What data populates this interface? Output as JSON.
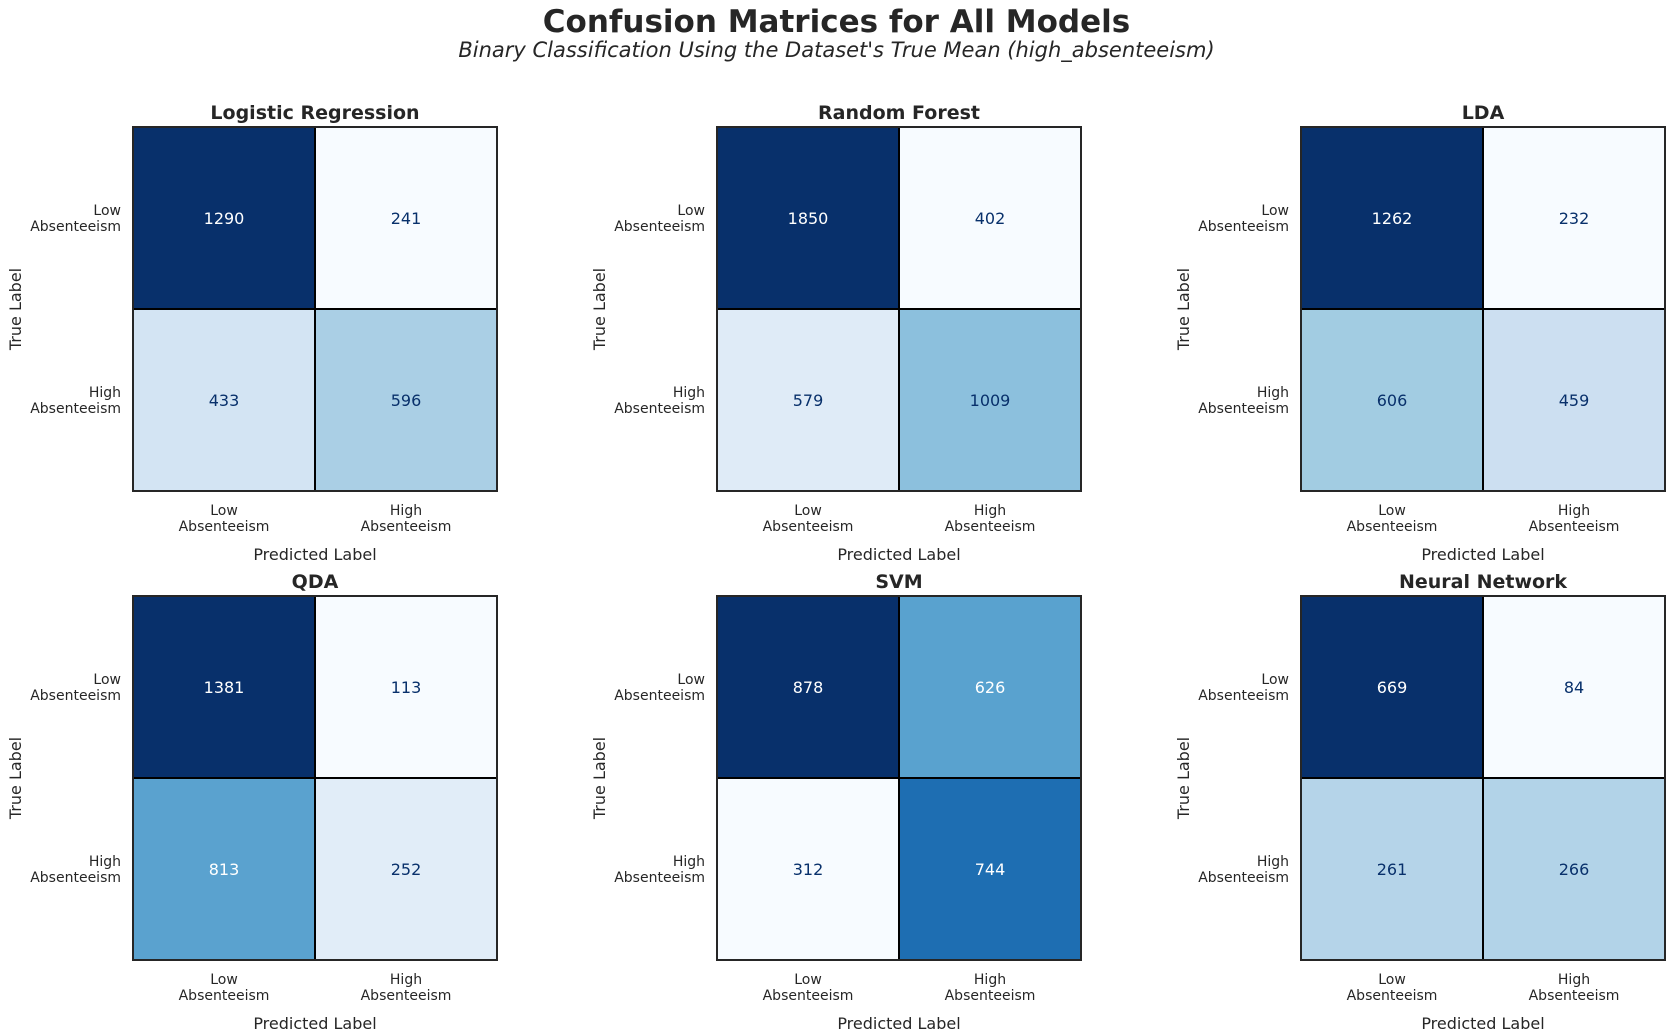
{
  "title": "Confusion Matrices for All Models",
  "subtitle": "Binary Classification Using the Dataset's True Mean (high_absenteeism)",
  "colors": {
    "colormap": "Blues",
    "light": "#f7fbff",
    "dark": "#08306b",
    "cell_border": "#000000",
    "text_on_dark": "#ffffff",
    "text_on_light": "#08306b"
  },
  "chart_data": [
    {
      "type": "heatmap",
      "title": "Logistic Regression",
      "xlabel": "Predicted Label",
      "ylabel": "True Label",
      "x_categories": [
        [
          "Low",
          "Absenteeism"
        ],
        [
          "High",
          "Absenteeism"
        ]
      ],
      "y_categories": [
        [
          "Low",
          "Absenteeism"
        ],
        [
          "High",
          "Absenteeism"
        ]
      ],
      "values": [
        [
          1290,
          241
        ],
        [
          433,
          596
        ]
      ]
    },
    {
      "type": "heatmap",
      "title": "Random Forest",
      "xlabel": "Predicted Label",
      "ylabel": "True Label",
      "x_categories": [
        [
          "Low",
          "Absenteeism"
        ],
        [
          "High",
          "Absenteeism"
        ]
      ],
      "y_categories": [
        [
          "Low",
          "Absenteeism"
        ],
        [
          "High",
          "Absenteeism"
        ]
      ],
      "values": [
        [
          1850,
          402
        ],
        [
          579,
          1009
        ]
      ]
    },
    {
      "type": "heatmap",
      "title": "LDA",
      "xlabel": "Predicted Label",
      "ylabel": "True Label",
      "x_categories": [
        [
          "Low",
          "Absenteeism"
        ],
        [
          "High",
          "Absenteeism"
        ]
      ],
      "y_categories": [
        [
          "Low",
          "Absenteeism"
        ],
        [
          "High",
          "Absenteeism"
        ]
      ],
      "values": [
        [
          1262,
          232
        ],
        [
          606,
          459
        ]
      ]
    },
    {
      "type": "heatmap",
      "title": "QDA",
      "xlabel": "Predicted Label",
      "ylabel": "True Label",
      "x_categories": [
        [
          "Low",
          "Absenteeism"
        ],
        [
          "High",
          "Absenteeism"
        ]
      ],
      "y_categories": [
        [
          "Low",
          "Absenteeism"
        ],
        [
          "High",
          "Absenteeism"
        ]
      ],
      "values": [
        [
          1381,
          113
        ],
        [
          813,
          252
        ]
      ]
    },
    {
      "type": "heatmap",
      "title": "SVM",
      "xlabel": "Predicted Label",
      "ylabel": "True Label",
      "x_categories": [
        [
          "Low",
          "Absenteeism"
        ],
        [
          "High",
          "Absenteeism"
        ]
      ],
      "y_categories": [
        [
          "Low",
          "Absenteeism"
        ],
        [
          "High",
          "Absenteeism"
        ]
      ],
      "values": [
        [
          878,
          626
        ],
        [
          312,
          744
        ]
      ]
    },
    {
      "type": "heatmap",
      "title": "Neural Network",
      "xlabel": "Predicted Label",
      "ylabel": "True Label",
      "x_categories": [
        [
          "Low",
          "Absenteeism"
        ],
        [
          "High",
          "Absenteeism"
        ]
      ],
      "y_categories": [
        [
          "Low",
          "Absenteeism"
        ],
        [
          "High",
          "Absenteeism"
        ]
      ],
      "values": [
        [
          669,
          84
        ],
        [
          261,
          266
        ]
      ]
    }
  ]
}
